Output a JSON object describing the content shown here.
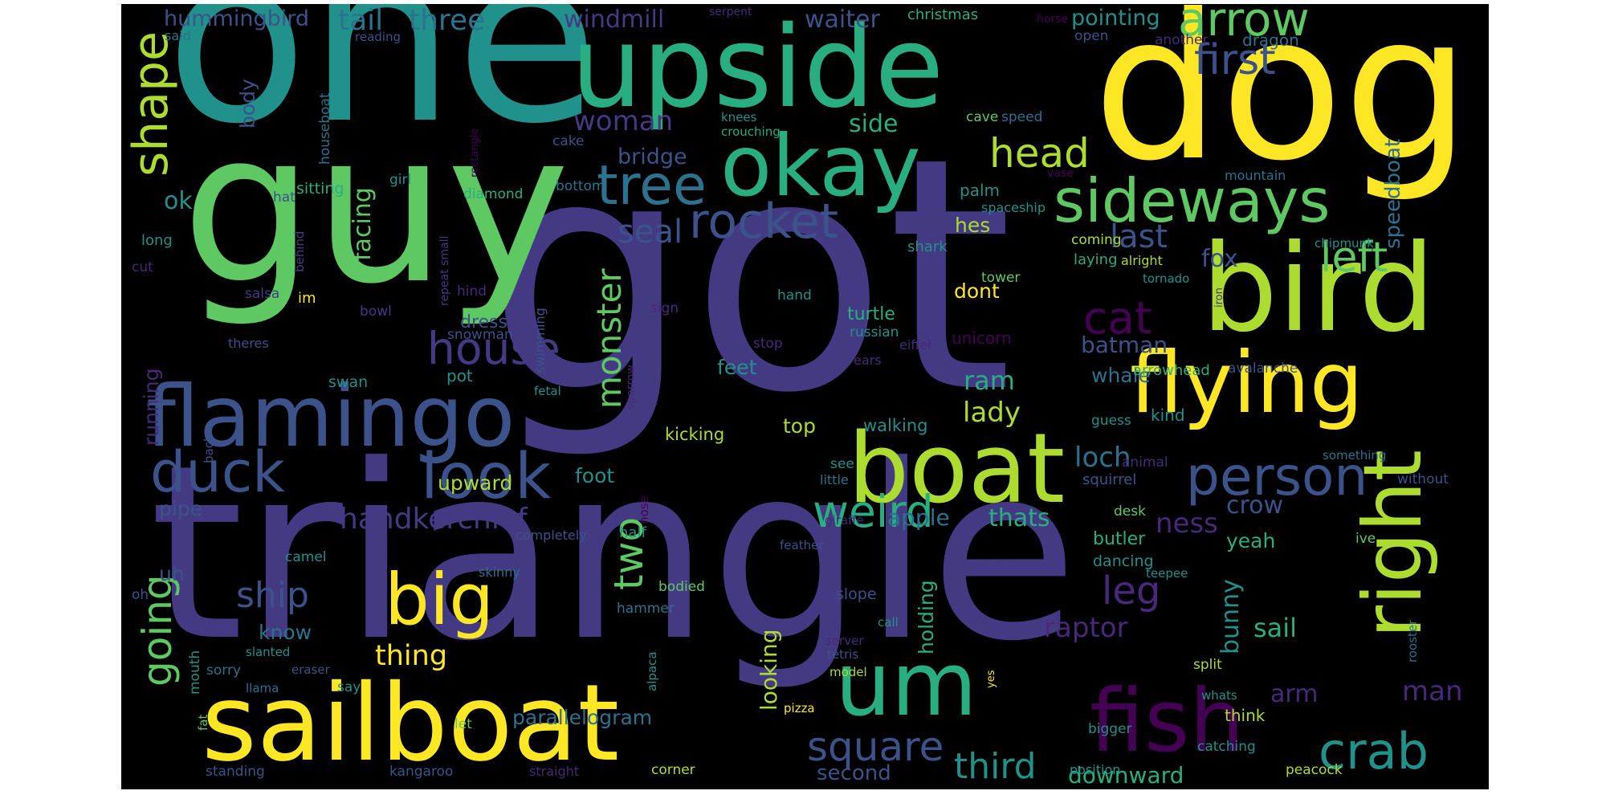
{
  "palette": {
    "purple": "#482878",
    "indigo": "#443a83",
    "blue": "#3b528b",
    "teal": "#2c728e",
    "green": "#21918c",
    "mint": "#28ae80",
    "lime": "#5ec962",
    "chartreuse": "#addc30",
    "yellow": "#fde725",
    "violet": "#440154"
  },
  "words": [
    {
      "text": "got",
      "color": "indigo"
    },
    {
      "text": "triangle",
      "color": "indigo"
    },
    {
      "text": "one",
      "color": "green"
    },
    {
      "text": "guy",
      "color": "lime"
    },
    {
      "text": "dog",
      "color": "yellow"
    },
    {
      "text": "upside",
      "color": "mint"
    },
    {
      "text": "bird",
      "color": "chartreuse"
    },
    {
      "text": "sailboat",
      "color": "yellow"
    },
    {
      "text": "boat",
      "color": "chartreuse"
    },
    {
      "text": "okay",
      "color": "mint"
    },
    {
      "text": "flying",
      "color": "yellow"
    },
    {
      "text": "flamingo",
      "color": "blue"
    },
    {
      "text": "fish",
      "color": "violet"
    },
    {
      "text": "right",
      "color": "chartreuse"
    },
    {
      "text": "um",
      "color": "mint"
    },
    {
      "text": "big",
      "color": "yellow"
    },
    {
      "text": "sideways",
      "color": "lime"
    },
    {
      "text": "tree",
      "color": "teal"
    },
    {
      "text": "rocket",
      "color": "blue"
    },
    {
      "text": "arrow",
      "color": "lime"
    },
    {
      "text": "person",
      "color": "blue"
    },
    {
      "text": "look",
      "color": "blue"
    },
    {
      "text": "duck",
      "color": "blue"
    },
    {
      "text": "shape",
      "color": "chartreuse"
    },
    {
      "text": "house",
      "color": "indigo"
    },
    {
      "text": "cat",
      "color": "violet"
    },
    {
      "text": "crab",
      "color": "green"
    },
    {
      "text": "head",
      "color": "chartreuse"
    },
    {
      "text": "weird",
      "color": "mint"
    },
    {
      "text": "first",
      "color": "blue"
    },
    {
      "text": "left",
      "color": "lime"
    },
    {
      "text": "square",
      "color": "blue"
    },
    {
      "text": "monster",
      "color": "lime"
    },
    {
      "text": "seal",
      "color": "blue"
    },
    {
      "text": "going",
      "color": "lime"
    },
    {
      "text": "leg",
      "color": "purple"
    },
    {
      "text": "two",
      "color": "lime"
    },
    {
      "text": "third",
      "color": "green"
    },
    {
      "text": "ship",
      "color": "blue"
    },
    {
      "text": "handkerchief",
      "color": "indigo"
    },
    {
      "text": "woman",
      "color": "indigo"
    },
    {
      "text": "last",
      "color": "blue"
    },
    {
      "text": "hummingbird",
      "color": "blue"
    },
    {
      "text": "tail",
      "color": "teal"
    },
    {
      "text": "three",
      "color": "teal"
    },
    {
      "text": "windmill",
      "color": "indigo"
    },
    {
      "text": "waiter",
      "color": "blue"
    },
    {
      "text": "pointing",
      "color": "green"
    },
    {
      "text": "christmas",
      "color": "mint"
    },
    {
      "text": "serpent",
      "color": "purple"
    },
    {
      "text": "horse",
      "color": "violet"
    },
    {
      "text": "another",
      "color": "purple"
    },
    {
      "text": "dragon",
      "color": "teal"
    },
    {
      "text": "said",
      "color": "teal"
    },
    {
      "text": "reading",
      "color": "blue"
    },
    {
      "text": "open",
      "color": "blue"
    },
    {
      "text": "body",
      "color": "blue"
    },
    {
      "text": "side",
      "color": "mint"
    },
    {
      "text": "bridge",
      "color": "blue"
    },
    {
      "text": "ok",
      "color": "green"
    },
    {
      "text": "facing",
      "color": "lime"
    },
    {
      "text": "hes",
      "color": "chartreuse"
    },
    {
      "text": "palm",
      "color": "green"
    },
    {
      "text": "fox",
      "color": "blue"
    },
    {
      "text": "speedboat",
      "color": "teal"
    },
    {
      "text": "batman",
      "color": "blue"
    },
    {
      "text": "dont",
      "color": "yellow"
    },
    {
      "text": "ram",
      "color": "mint"
    },
    {
      "text": "lady",
      "color": "chartreuse"
    },
    {
      "text": "whale",
      "color": "teal"
    },
    {
      "text": "loch",
      "color": "teal"
    },
    {
      "text": "ness",
      "color": "purple"
    },
    {
      "text": "crow",
      "color": "blue"
    },
    {
      "text": "yeah",
      "color": "mint"
    },
    {
      "text": "apple",
      "color": "teal"
    },
    {
      "text": "thats",
      "color": "mint"
    },
    {
      "text": "running",
      "color": "purple"
    },
    {
      "text": "upward",
      "color": "chartreuse"
    },
    {
      "text": "foot",
      "color": "green"
    },
    {
      "text": "pipe",
      "color": "blue"
    },
    {
      "text": "uh",
      "color": "blue"
    },
    {
      "text": "know",
      "color": "teal"
    },
    {
      "text": "thing",
      "color": "yellow"
    },
    {
      "text": "parallelogram",
      "color": "teal"
    },
    {
      "text": "looking",
      "color": "chartreuse"
    },
    {
      "text": "holding",
      "color": "mint"
    },
    {
      "text": "raptor",
      "color": "purple"
    },
    {
      "text": "bunny",
      "color": "green"
    },
    {
      "text": "sail",
      "color": "mint"
    },
    {
      "text": "arm",
      "color": "purple"
    },
    {
      "text": "man",
      "color": "purple"
    },
    {
      "text": "second",
      "color": "blue"
    },
    {
      "text": "downward",
      "color": "mint"
    },
    {
      "text": "top",
      "color": "chartreuse"
    },
    {
      "text": "walking",
      "color": "green"
    },
    {
      "text": "kicking",
      "color": "chartreuse"
    },
    {
      "text": "turtle",
      "color": "mint"
    },
    {
      "text": "feet",
      "color": "green"
    },
    {
      "text": "dress",
      "color": "blue"
    },
    {
      "text": "knees",
      "color": "green"
    },
    {
      "text": "crouching",
      "color": "mint"
    },
    {
      "text": "cave",
      "color": "lime"
    },
    {
      "text": "speed",
      "color": "teal"
    },
    {
      "text": "cake",
      "color": "blue"
    },
    {
      "text": "houseboat",
      "color": "teal"
    },
    {
      "text": "rectangle",
      "color": "violet"
    },
    {
      "text": "mountain",
      "color": "teal"
    },
    {
      "text": "vase",
      "color": "violet"
    },
    {
      "text": "spaceship",
      "color": "green"
    },
    {
      "text": "chipmunk",
      "color": "green"
    },
    {
      "text": "girl",
      "color": "green"
    },
    {
      "text": "hat",
      "color": "blue"
    },
    {
      "text": "sitting",
      "color": "mint"
    },
    {
      "text": "diamond",
      "color": "mint"
    },
    {
      "text": "bottom",
      "color": "teal"
    },
    {
      "text": "sea",
      "color": "indigo"
    },
    {
      "text": "tower",
      "color": "lime"
    },
    {
      "text": "shark",
      "color": "green"
    },
    {
      "text": "coming",
      "color": "chartreuse"
    },
    {
      "text": "alright",
      "color": "chartreuse"
    },
    {
      "text": "long",
      "color": "green"
    },
    {
      "text": "cut",
      "color": "purple"
    },
    {
      "text": "behind",
      "color": "indigo"
    },
    {
      "text": "repeat small",
      "color": "indigo"
    },
    {
      "text": "salsa",
      "color": "indigo"
    },
    {
      "text": "bowl",
      "color": "indigo"
    },
    {
      "text": "hind",
      "color": "purple"
    },
    {
      "text": "tornado",
      "color": "green"
    },
    {
      "text": "iron",
      "color": "indigo"
    },
    {
      "text": "laying",
      "color": "mint"
    },
    {
      "text": "hand",
      "color": "green"
    },
    {
      "text": "im",
      "color": "yellow"
    },
    {
      "text": "sign",
      "color": "purple"
    },
    {
      "text": "stop",
      "color": "purple"
    },
    {
      "text": "russian",
      "color": "green"
    },
    {
      "text": "unicorn",
      "color": "violet"
    },
    {
      "text": "ears",
      "color": "purple"
    },
    {
      "text": "eiffel",
      "color": "purple"
    },
    {
      "text": "theres",
      "color": "blue"
    },
    {
      "text": "snowman",
      "color": "blue"
    },
    {
      "text": "swimming",
      "color": "blue"
    },
    {
      "text": "swan",
      "color": "green"
    },
    {
      "text": "pot",
      "color": "green"
    },
    {
      "text": "fetal",
      "color": "green"
    },
    {
      "text": "sparrow",
      "color": "purple"
    },
    {
      "text": "arrowhead",
      "color": "mint"
    },
    {
      "text": "avalanche",
      "color": "blue"
    },
    {
      "text": "back",
      "color": "blue"
    },
    {
      "text": "guess",
      "color": "green"
    },
    {
      "text": "kind",
      "color": "green"
    },
    {
      "text": "animal",
      "color": "purple"
    },
    {
      "text": "something",
      "color": "teal"
    },
    {
      "text": "see",
      "color": "green"
    },
    {
      "text": "little",
      "color": "teal"
    },
    {
      "text": "squirrel",
      "color": "blue"
    },
    {
      "text": "without",
      "color": "blue"
    },
    {
      "text": "nose",
      "color": "violet"
    },
    {
      "text": "completely",
      "color": "blue"
    },
    {
      "text": "half",
      "color": "green"
    },
    {
      "text": "giraffe",
      "color": "purple"
    },
    {
      "text": "desk",
      "color": "lime"
    },
    {
      "text": "feather",
      "color": "blue"
    },
    {
      "text": "butler",
      "color": "mint"
    },
    {
      "text": "ive",
      "color": "lime"
    },
    {
      "text": "camel",
      "color": "green"
    },
    {
      "text": "dancing",
      "color": "green"
    },
    {
      "text": "skinny",
      "color": "teal"
    },
    {
      "text": "teepee",
      "color": "green"
    },
    {
      "text": "oh",
      "color": "blue"
    },
    {
      "text": "bodied",
      "color": "lime"
    },
    {
      "text": "hammer",
      "color": "teal"
    },
    {
      "text": "slope",
      "color": "blue"
    },
    {
      "text": "mouth",
      "color": "green"
    },
    {
      "text": "call",
      "color": "green"
    },
    {
      "text": "alpaca",
      "color": "green"
    },
    {
      "text": "server",
      "color": "purple"
    },
    {
      "text": "slanted",
      "color": "green"
    },
    {
      "text": "tetris",
      "color": "blue"
    },
    {
      "text": "sorry",
      "color": "teal"
    },
    {
      "text": "eraser",
      "color": "blue"
    },
    {
      "text": "rooster",
      "color": "teal"
    },
    {
      "text": "llama",
      "color": "teal"
    },
    {
      "text": "say",
      "color": "green"
    },
    {
      "text": "model",
      "color": "chartreuse"
    },
    {
      "text": "split",
      "color": "chartreuse"
    },
    {
      "text": "yes",
      "color": "yellow"
    },
    {
      "text": "whats",
      "color": "green"
    },
    {
      "text": "fat",
      "color": "lime"
    },
    {
      "text": "let",
      "color": "lime"
    },
    {
      "text": "pizza",
      "color": "yellow"
    },
    {
      "text": "bigger",
      "color": "green"
    },
    {
      "text": "think",
      "color": "chartreuse"
    },
    {
      "text": "standing",
      "color": "blue"
    },
    {
      "text": "kangaroo",
      "color": "blue"
    },
    {
      "text": "straight",
      "color": "purple"
    },
    {
      "text": "catching",
      "color": "green"
    },
    {
      "text": "corner",
      "color": "chartreuse"
    },
    {
      "text": "position",
      "color": "green"
    },
    {
      "text": "peacock",
      "color": "chartreuse"
    }
  ]
}
